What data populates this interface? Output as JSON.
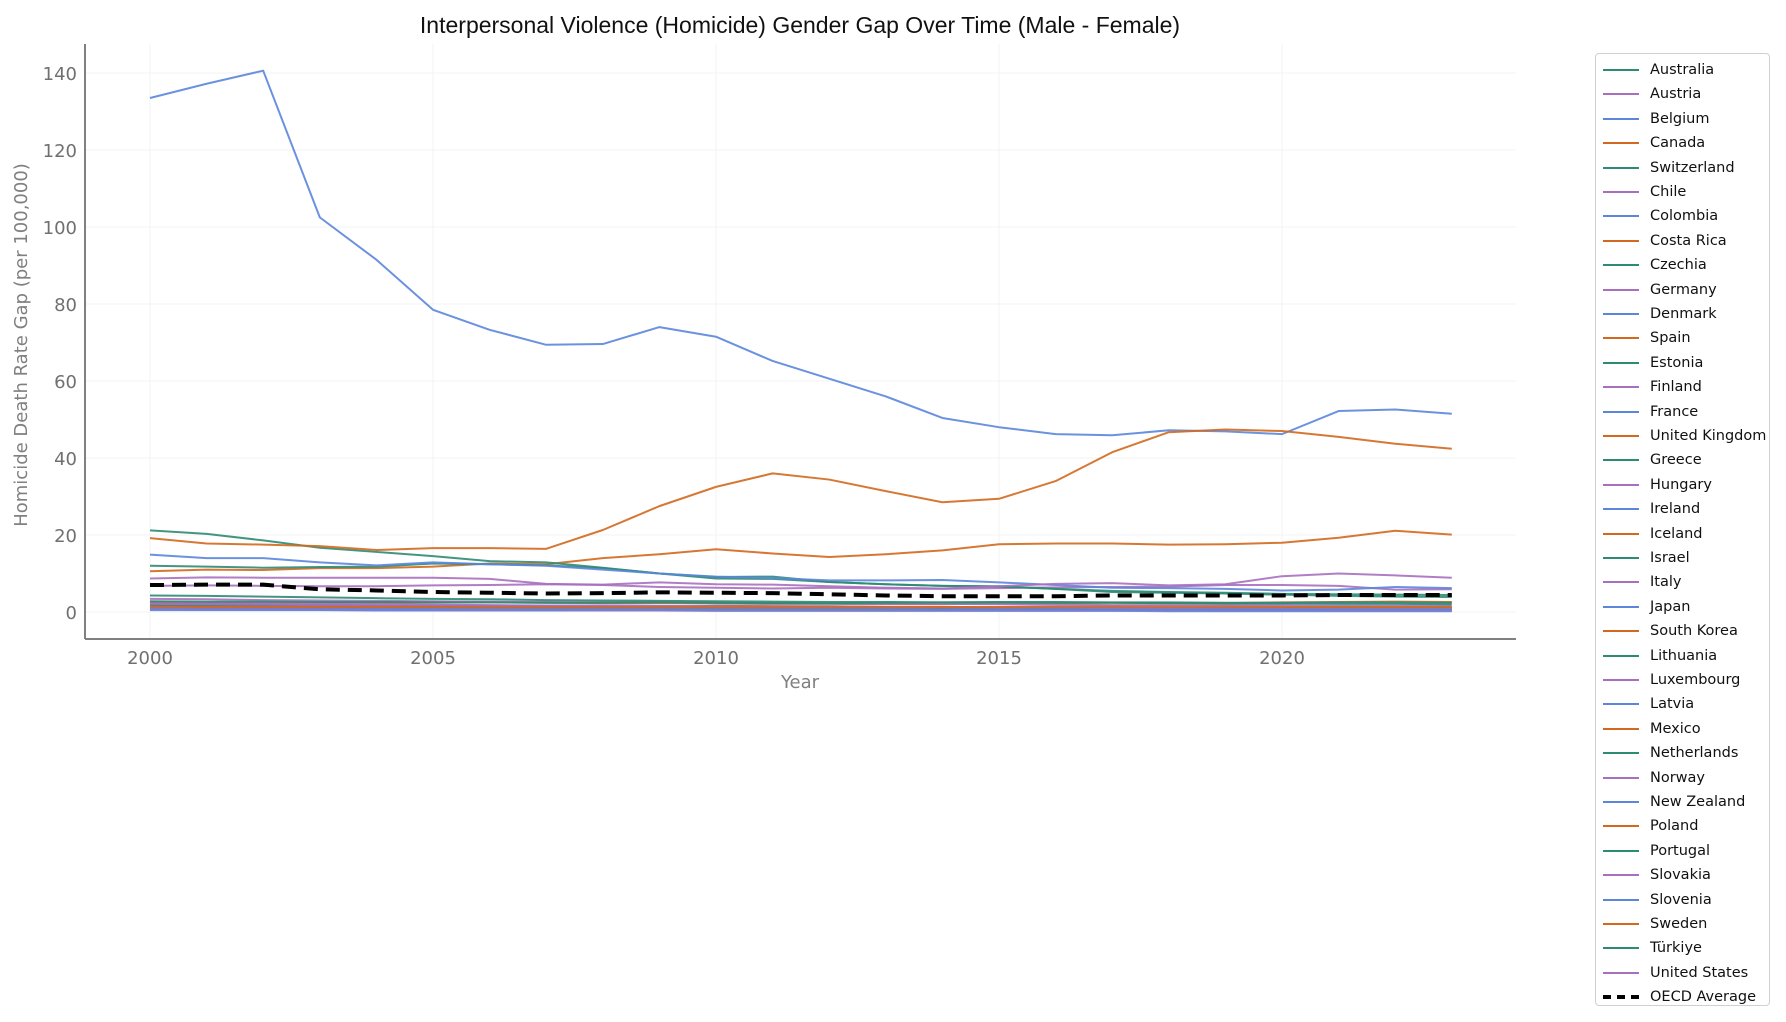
{
  "chart_data": {
    "type": "line",
    "title": "Interpersonal Violence (Homicide) Gender Gap Over Time (Male - Female)",
    "xlabel": "Year",
    "ylabel": "Homicide Death Rate Gap (per 100,000)",
    "xlim": [
      1999,
      2024
    ],
    "ylim": [
      -7,
      148
    ],
    "x_ticks": [
      2000,
      2005,
      2010,
      2015,
      2020
    ],
    "y_ticks": [
      0,
      20,
      40,
      60,
      80,
      100,
      120,
      140
    ],
    "grid": true,
    "legend_position": "outside right",
    "x": [
      2000,
      2001,
      2002,
      2003,
      2004,
      2005,
      2006,
      2007,
      2008,
      2009,
      2010,
      2011,
      2012,
      2013,
      2014,
      2015,
      2016,
      2017,
      2018,
      2019,
      2020,
      2021,
      2022,
      2023
    ],
    "series": [
      {
        "name": "Australia",
        "color": "#2e8b73",
        "values": [
          2.2,
          2.0,
          1.9,
          1.8,
          1.7,
          1.6,
          1.6,
          1.5,
          1.4,
          1.4,
          1.3,
          1.3,
          1.2,
          1.2,
          1.2,
          1.1,
          1.1,
          1.1,
          1.0,
          1.0,
          1.0,
          1.0,
          1.0,
          1.0
        ]
      },
      {
        "name": "Austria",
        "color": "#a96fbf",
        "values": [
          0.8,
          0.8,
          0.7,
          0.7,
          0.7,
          0.6,
          0.6,
          0.6,
          0.6,
          0.6,
          0.5,
          0.5,
          0.5,
          0.5,
          0.5,
          0.5,
          0.5,
          0.5,
          0.5,
          0.4,
          0.5,
          0.5,
          0.5,
          0.5
        ]
      },
      {
        "name": "Belgium",
        "color": "#5b86db",
        "values": [
          1.8,
          1.7,
          1.6,
          1.6,
          1.5,
          1.5,
          1.4,
          1.4,
          1.3,
          1.3,
          1.3,
          1.2,
          1.2,
          1.2,
          1.1,
          1.1,
          1.1,
          1.0,
          1.0,
          1.0,
          1.0,
          1.0,
          1.0,
          0.9
        ]
      },
      {
        "name": "Canada",
        "color": "#d2691e",
        "values": [
          2.6,
          2.5,
          2.5,
          2.4,
          2.4,
          2.5,
          2.5,
          2.4,
          2.3,
          2.3,
          2.2,
          2.1,
          2.1,
          2.0,
          2.0,
          2.2,
          2.3,
          2.4,
          2.3,
          2.3,
          2.5,
          2.6,
          2.7,
          2.6
        ]
      },
      {
        "name": "Switzerland",
        "color": "#2e8b73",
        "values": [
          1.0,
          0.9,
          0.9,
          0.8,
          0.8,
          0.8,
          0.7,
          0.7,
          0.7,
          0.7,
          0.6,
          0.6,
          0.6,
          0.5,
          0.5,
          0.5,
          0.5,
          0.5,
          0.5,
          0.5,
          0.5,
          0.5,
          0.5,
          0.5
        ]
      },
      {
        "name": "Chile",
        "color": "#a96fbf",
        "values": [
          6.8,
          6.9,
          6.8,
          6.7,
          6.7,
          6.9,
          7.0,
          7.2,
          7.0,
          6.5,
          6.3,
          6.1,
          6.3,
          6.1,
          6.0,
          6.2,
          6.4,
          6.5,
          6.6,
          7.0,
          7.0,
          6.8,
          5.8,
          5.9
        ]
      },
      {
        "name": "Colombia",
        "color": "#5b86db",
        "values": [
          133.5,
          137.2,
          140.6,
          102.5,
          91.5,
          78.5,
          73.3,
          69.4,
          69.6,
          74.0,
          71.5,
          65.2,
          60.6,
          56.0,
          50.4,
          48.0,
          46.2,
          45.9,
          47.2,
          46.9,
          46.2,
          52.2,
          52.6,
          51.5
        ]
      },
      {
        "name": "Costa Rica",
        "color": "#d2691e",
        "values": [
          10.6,
          11.0,
          10.9,
          11.4,
          11.4,
          11.8,
          12.6,
          12.4,
          14.0,
          15.0,
          16.3,
          15.2,
          14.3,
          15.0,
          16.0,
          17.6,
          17.8,
          17.8,
          17.5,
          17.6,
          18.0,
          19.3,
          21.1,
          20.1
        ]
      },
      {
        "name": "Czechia",
        "color": "#2e8b73",
        "values": [
          1.5,
          1.4,
          1.4,
          1.3,
          1.2,
          1.2,
          1.1,
          1.1,
          1.0,
          1.0,
          0.9,
          0.9,
          0.9,
          0.8,
          0.8,
          0.8,
          0.8,
          0.7,
          0.7,
          0.7,
          0.7,
          0.7,
          0.7,
          0.7
        ]
      },
      {
        "name": "Germany",
        "color": "#a96fbf",
        "values": [
          0.9,
          0.9,
          0.8,
          0.8,
          0.8,
          0.7,
          0.7,
          0.7,
          0.7,
          0.6,
          0.6,
          0.6,
          0.6,
          0.6,
          0.6,
          0.6,
          0.7,
          0.6,
          0.6,
          0.6,
          0.6,
          0.6,
          0.6,
          0.6
        ]
      },
      {
        "name": "Denmark",
        "color": "#5b86db",
        "values": [
          1.2,
          1.1,
          1.1,
          1.0,
          1.0,
          1.0,
          1.0,
          0.9,
          0.9,
          0.9,
          0.8,
          0.8,
          0.8,
          0.8,
          0.8,
          0.7,
          0.7,
          0.7,
          0.7,
          0.7,
          0.7,
          0.7,
          0.7,
          0.7
        ]
      },
      {
        "name": "Spain",
        "color": "#d2691e",
        "values": [
          1.3,
          1.3,
          1.2,
          1.2,
          1.1,
          1.1,
          1.0,
          1.0,
          0.9,
          0.9,
          0.8,
          0.8,
          0.7,
          0.7,
          0.7,
          0.7,
          0.7,
          0.6,
          0.6,
          0.6,
          0.6,
          0.6,
          0.6,
          0.6
        ]
      },
      {
        "name": "Estonia",
        "color": "#2e8b73",
        "values": [
          21.2,
          20.3,
          18.6,
          16.7,
          15.6,
          14.5,
          13.2,
          12.9,
          11.5,
          10.0,
          9.1,
          9.2,
          7.8,
          7.2,
          6.8,
          6.7,
          6.0,
          5.2,
          5.0,
          4.8,
          4.5,
          4.2,
          4.0,
          3.9
        ]
      },
      {
        "name": "Finland",
        "color": "#a96fbf",
        "values": [
          3.4,
          3.3,
          3.1,
          3.0,
          2.9,
          2.8,
          2.7,
          2.6,
          2.5,
          2.5,
          2.4,
          2.3,
          2.2,
          2.1,
          2.1,
          2.0,
          1.9,
          1.8,
          1.8,
          1.7,
          1.7,
          1.6,
          1.6,
          1.6
        ]
      },
      {
        "name": "France",
        "color": "#5b86db",
        "values": [
          1.5,
          1.4,
          1.4,
          1.3,
          1.2,
          1.2,
          1.1,
          1.1,
          1.0,
          1.0,
          1.0,
          0.9,
          0.9,
          0.9,
          0.9,
          0.9,
          0.8,
          0.8,
          0.8,
          0.8,
          0.8,
          0.8,
          0.8,
          0.8
        ]
      },
      {
        "name": "United Kingdom",
        "color": "#d2691e",
        "values": [
          1.0,
          1.0,
          1.0,
          0.9,
          0.9,
          0.9,
          0.8,
          0.8,
          0.8,
          0.8,
          0.7,
          0.7,
          0.6,
          0.6,
          0.6,
          0.6,
          0.7,
          0.7,
          0.7,
          0.7,
          0.7,
          0.7,
          0.7,
          0.7
        ]
      },
      {
        "name": "Greece",
        "color": "#2e8b73",
        "values": [
          1.6,
          1.5,
          1.5,
          1.4,
          1.4,
          1.4,
          1.3,
          1.3,
          1.4,
          1.4,
          1.6,
          1.5,
          1.5,
          1.3,
          1.2,
          1.2,
          1.1,
          1.1,
          1.0,
          1.0,
          1.0,
          1.0,
          1.0,
          1.0
        ]
      },
      {
        "name": "Hungary",
        "color": "#a96fbf",
        "values": [
          2.4,
          2.3,
          2.2,
          2.1,
          2.0,
          1.9,
          1.8,
          1.7,
          1.7,
          1.6,
          1.5,
          1.5,
          1.4,
          1.3,
          1.3,
          1.2,
          1.2,
          1.2,
          1.1,
          1.1,
          1.1,
          1.1,
          1.0,
          1.0
        ]
      },
      {
        "name": "Ireland",
        "color": "#5b86db",
        "values": [
          1.4,
          1.4,
          1.3,
          1.3,
          1.3,
          1.2,
          1.2,
          1.2,
          1.1,
          1.1,
          1.0,
          1.0,
          1.0,
          0.9,
          0.9,
          0.9,
          0.8,
          0.8,
          0.8,
          0.8,
          0.8,
          0.7,
          0.7,
          0.7
        ]
      },
      {
        "name": "Iceland",
        "color": "#d2691e",
        "values": [
          0.7,
          0.6,
          0.6,
          0.6,
          0.6,
          0.5,
          0.5,
          0.5,
          0.5,
          0.5,
          0.5,
          0.5,
          0.5,
          0.5,
          0.5,
          0.5,
          0.5,
          0.5,
          0.5,
          0.5,
          0.5,
          0.5,
          0.5,
          0.5
        ]
      },
      {
        "name": "Israel",
        "color": "#2e8b73",
        "values": [
          2.8,
          2.7,
          2.7,
          2.6,
          2.6,
          2.5,
          2.5,
          2.4,
          2.4,
          2.5,
          2.4,
          2.3,
          2.3,
          2.4,
          2.5,
          2.6,
          2.6,
          2.5,
          2.5,
          2.4,
          2.4,
          2.5,
          2.5,
          2.4
        ]
      },
      {
        "name": "Italy",
        "color": "#a96fbf",
        "values": [
          1.7,
          1.6,
          1.5,
          1.5,
          1.4,
          1.4,
          1.3,
          1.3,
          1.2,
          1.2,
          1.1,
          1.1,
          1.0,
          1.0,
          1.0,
          0.9,
          0.9,
          0.9,
          0.8,
          0.8,
          0.8,
          0.8,
          0.8,
          0.8
        ]
      },
      {
        "name": "Japan",
        "color": "#5b86db",
        "values": [
          0.5,
          0.5,
          0.5,
          0.5,
          0.4,
          0.4,
          0.4,
          0.4,
          0.4,
          0.4,
          0.3,
          0.3,
          0.3,
          0.3,
          0.3,
          0.3,
          0.3,
          0.3,
          0.2,
          0.2,
          0.2,
          0.2,
          0.2,
          0.2
        ]
      },
      {
        "name": "South Korea",
        "color": "#d2691e",
        "values": [
          1.2,
          1.2,
          1.1,
          1.1,
          1.1,
          1.0,
          1.0,
          1.0,
          0.9,
          0.9,
          0.9,
          0.8,
          0.8,
          0.8,
          0.7,
          0.7,
          0.7,
          0.6,
          0.6,
          0.6,
          0.6,
          0.5,
          0.5,
          0.5
        ]
      },
      {
        "name": "Lithuania",
        "color": "#2e8b73",
        "values": [
          12.0,
          11.8,
          11.5,
          11.7,
          11.8,
          12.6,
          12.4,
          12.1,
          11.4,
          10.0,
          8.7,
          8.6,
          7.8,
          7.2,
          6.8,
          6.6,
          6.0,
          5.5,
          5.2,
          5.0,
          4.7,
          4.6,
          4.5,
          4.4
        ]
      },
      {
        "name": "Luxembourg",
        "color": "#a96fbf",
        "values": [
          1.3,
          1.2,
          1.2,
          1.1,
          1.1,
          1.1,
          1.0,
          1.0,
          1.0,
          0.9,
          0.9,
          0.9,
          0.9,
          0.8,
          0.8,
          0.8,
          0.8,
          0.8,
          0.8,
          0.7,
          0.7,
          0.7,
          0.7,
          0.7
        ]
      },
      {
        "name": "Latvia",
        "color": "#5b86db",
        "values": [
          14.9,
          14.0,
          14.0,
          12.9,
          12.1,
          12.9,
          12.4,
          12.0,
          11.0,
          10.0,
          9.2,
          8.8,
          8.2,
          8.2,
          8.3,
          7.7,
          7.0,
          6.3,
          6.2,
          6.0,
          5.6,
          5.8,
          6.5,
          6.2
        ]
      },
      {
        "name": "Mexico",
        "color": "#d2691e",
        "values": [
          19.2,
          17.8,
          17.5,
          17.1,
          16.1,
          16.6,
          16.6,
          16.4,
          21.3,
          27.5,
          32.5,
          36.0,
          34.4,
          31.4,
          28.5,
          29.4,
          34.0,
          41.5,
          46.7,
          47.4,
          47.0,
          45.5,
          43.7,
          42.4
        ]
      },
      {
        "name": "Netherlands",
        "color": "#2e8b73",
        "values": [
          1.1,
          1.1,
          1.0,
          1.0,
          1.0,
          0.9,
          0.9,
          0.9,
          0.8,
          0.8,
          0.8,
          0.8,
          0.7,
          0.7,
          0.7,
          0.7,
          0.7,
          0.6,
          0.6,
          0.6,
          0.6,
          0.6,
          0.6,
          0.6
        ]
      },
      {
        "name": "Norway",
        "color": "#a96fbf",
        "values": [
          0.9,
          0.8,
          0.8,
          0.8,
          0.7,
          0.7,
          0.7,
          0.7,
          0.6,
          0.6,
          0.6,
          0.6,
          0.6,
          0.6,
          0.5,
          0.5,
          0.5,
          0.5,
          0.5,
          0.5,
          0.5,
          0.5,
          0.5,
          0.5
        ]
      },
      {
        "name": "New Zealand",
        "color": "#5b86db",
        "values": [
          1.3,
          1.3,
          1.2,
          1.2,
          1.2,
          1.1,
          1.1,
          1.1,
          1.0,
          1.0,
          1.0,
          1.0,
          0.9,
          0.9,
          0.9,
          0.9,
          0.9,
          0.9,
          0.9,
          0.9,
          0.9,
          0.9,
          0.9,
          0.9
        ]
      },
      {
        "name": "Poland",
        "color": "#d2691e",
        "values": [
          2.0,
          1.9,
          1.8,
          1.7,
          1.6,
          1.5,
          1.4,
          1.3,
          1.3,
          1.2,
          1.2,
          1.1,
          1.0,
          1.0,
          1.0,
          0.9,
          0.9,
          0.9,
          0.8,
          0.8,
          0.8,
          0.8,
          0.8,
          0.8
        ]
      },
      {
        "name": "Portugal",
        "color": "#2e8b73",
        "values": [
          1.8,
          1.7,
          1.7,
          1.6,
          1.6,
          1.5,
          1.4,
          1.4,
          1.4,
          1.4,
          1.3,
          1.3,
          1.2,
          1.2,
          1.1,
          1.1,
          1.0,
          1.0,
          1.0,
          0.9,
          0.9,
          0.9,
          0.9,
          0.9
        ]
      },
      {
        "name": "Slovakia",
        "color": "#a96fbf",
        "values": [
          2.1,
          2.0,
          1.9,
          1.8,
          1.7,
          1.7,
          1.6,
          1.5,
          1.5,
          1.4,
          1.4,
          1.3,
          1.3,
          1.2,
          1.2,
          1.1,
          1.1,
          1.0,
          1.0,
          1.0,
          1.0,
          0.9,
          0.9,
          0.9
        ]
      },
      {
        "name": "Slovenia",
        "color": "#5b86db",
        "values": [
          1.1,
          1.0,
          1.0,
          1.0,
          0.9,
          0.9,
          0.9,
          0.8,
          0.8,
          0.8,
          0.7,
          0.7,
          0.7,
          0.7,
          0.6,
          0.6,
          0.6,
          0.6,
          0.6,
          0.6,
          0.6,
          0.6,
          0.6,
          0.6
        ]
      },
      {
        "name": "Sweden",
        "color": "#d2691e",
        "values": [
          1.4,
          1.3,
          1.3,
          1.3,
          1.3,
          1.3,
          1.2,
          1.2,
          1.2,
          1.2,
          1.2,
          1.2,
          1.2,
          1.2,
          1.3,
          1.3,
          1.4,
          1.4,
          1.4,
          1.4,
          1.3,
          1.3,
          1.3,
          1.3
        ]
      },
      {
        "name": "Türkiye",
        "color": "#2e8b73",
        "values": [
          4.3,
          4.2,
          4.0,
          3.8,
          3.6,
          3.4,
          3.3,
          3.1,
          3.0,
          2.9,
          2.8,
          2.7,
          2.6,
          2.6,
          2.5,
          2.5,
          2.4,
          2.4,
          2.3,
          2.2,
          2.2,
          2.1,
          2.1,
          2.0
        ]
      },
      {
        "name": "United States",
        "color": "#a96fbf",
        "values": [
          8.7,
          9.0,
          8.9,
          8.9,
          8.9,
          8.9,
          8.6,
          7.3,
          7.1,
          7.7,
          7.2,
          7.1,
          6.7,
          6.3,
          6.1,
          6.7,
          7.3,
          7.5,
          6.9,
          7.2,
          9.3,
          10.0,
          9.5,
          8.9
        ]
      },
      {
        "name": "OECD Average",
        "color": "#000000",
        "dashed": true,
        "values": [
          7.0,
          7.1,
          7.1,
          5.9,
          5.6,
          5.2,
          5.0,
          4.8,
          4.9,
          5.1,
          5.0,
          4.9,
          4.6,
          4.3,
          4.1,
          4.1,
          4.1,
          4.3,
          4.3,
          4.3,
          4.3,
          4.4,
          4.4,
          4.4
        ]
      }
    ]
  }
}
